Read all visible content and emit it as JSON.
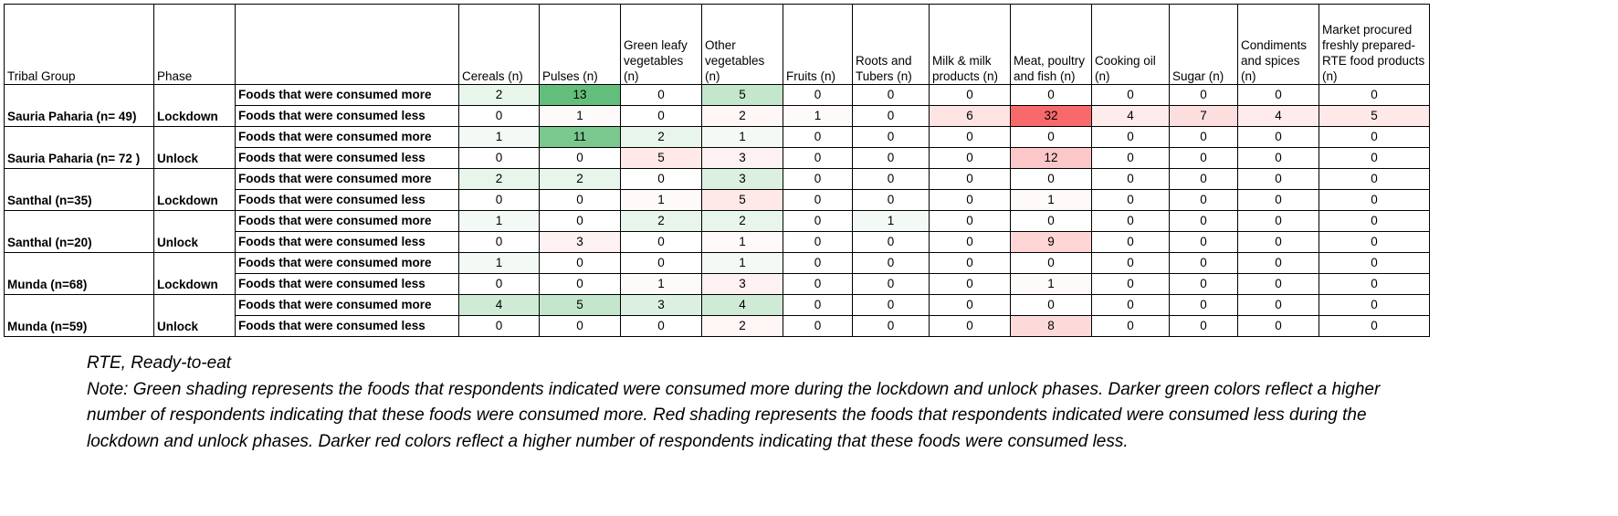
{
  "table": {
    "group_header": "Tribal Group",
    "phase_header": "Phase",
    "columns": [
      "Cereals (n)",
      "Pulses (n)",
      "Green leafy vegetables (n)",
      "Other vegetables (n)",
      "Fruits (n)",
      "Roots and Tubers (n)",
      "Milk & milk products (n)",
      "Meat, poultry and fish (n)",
      "Cooking oil (n)",
      "Sugar (n)",
      "Condiments and spices (n)",
      "Market procured freshly prepared-RTE food products (n)"
    ],
    "groups": [
      {
        "group": "Sauria Paharia (n= 49)",
        "phase": "Lockdown",
        "rows": [
          {
            "label": "Foods that were consumed more",
            "shade": "#63be7b",
            "values": [
              2,
              13,
              0,
              5,
              0,
              0,
              0,
              0,
              0,
              0,
              0,
              0
            ]
          },
          {
            "label": "Foods that were consumed less",
            "shade": "#f8696b",
            "values": [
              0,
              1,
              0,
              2,
              1,
              0,
              6,
              32,
              4,
              7,
              4,
              5
            ]
          }
        ]
      },
      {
        "group": "Sauria Paharia (n= 72 )",
        "phase": "Unlock",
        "rows": [
          {
            "label": "Foods that were consumed more",
            "shade": "#63be7b",
            "values": [
              1,
              11,
              2,
              1,
              0,
              0,
              0,
              0,
              0,
              0,
              0,
              0
            ]
          },
          {
            "label": "Foods that were consumed less",
            "shade": "#f8696b",
            "values": [
              0,
              0,
              5,
              3,
              0,
              0,
              0,
              12,
              0,
              0,
              0,
              0
            ]
          }
        ]
      },
      {
        "group": "Santhal (n=35)",
        "phase": "Lockdown",
        "rows": [
          {
            "label": "Foods that were consumed more",
            "shade": "#63be7b",
            "values": [
              2,
              2,
              0,
              3,
              0,
              0,
              0,
              0,
              0,
              0,
              0,
              0
            ]
          },
          {
            "label": "Foods that were consumed less",
            "shade": "#f8696b",
            "values": [
              0,
              0,
              1,
              5,
              0,
              0,
              0,
              1,
              0,
              0,
              0,
              0
            ]
          }
        ]
      },
      {
        "group": "Santhal (n=20)",
        "phase": "Unlock",
        "rows": [
          {
            "label": "Foods that were consumed more",
            "shade": "#63be7b",
            "values": [
              1,
              0,
              2,
              2,
              0,
              1,
              0,
              0,
              0,
              0,
              0,
              0
            ]
          },
          {
            "label": "Foods that were consumed less",
            "shade": "#f8696b",
            "values": [
              0,
              3,
              0,
              1,
              0,
              0,
              0,
              9,
              0,
              0,
              0,
              0
            ]
          }
        ]
      },
      {
        "group": "Munda (n=68)",
        "phase": "Lockdown",
        "rows": [
          {
            "label": "Foods that were consumed more",
            "shade": "#63be7b",
            "values": [
              1,
              0,
              0,
              1,
              0,
              0,
              0,
              0,
              0,
              0,
              0,
              0
            ]
          },
          {
            "label": "Foods that were consumed less",
            "shade": "#f8696b",
            "values": [
              0,
              0,
              1,
              3,
              0,
              0,
              0,
              1,
              0,
              0,
              0,
              0
            ]
          }
        ]
      },
      {
        "group": "Munda (n=59)",
        "phase": "Unlock",
        "rows": [
          {
            "label": "Foods that were consumed more",
            "shade": "#63be7b",
            "values": [
              4,
              5,
              3,
              4,
              0,
              0,
              0,
              0,
              0,
              0,
              0,
              0
            ]
          },
          {
            "label": "Foods that were consumed less",
            "shade": "#f8696b",
            "values": [
              0,
              0,
              0,
              2,
              0,
              0,
              0,
              8,
              0,
              0,
              0,
              0
            ]
          }
        ]
      }
    ]
  },
  "notes": [
    "RTE, Ready-to-eat",
    "Note: Green shading represents the foods that respondents indicated were consumed more during the lockdown and unlock phases. Darker green colors reflect a higher number of respondents indicating that these foods were consumed more. Red shading represents the foods that respondents indicated were consumed less during the lockdown and unlock phases. Darker red colors reflect a higher number of respondents indicating that these foods were consumed less."
  ]
}
